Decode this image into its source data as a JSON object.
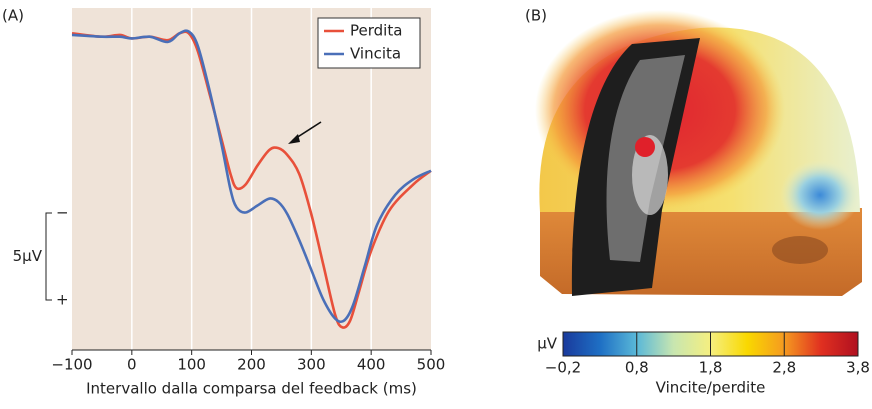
{
  "chart_data": [
    {
      "type": "line",
      "panel_label": "(A)",
      "xlabel": "Intervallo dalla comparsa del feedback (ms)",
      "xlim": [
        -100,
        500
      ],
      "xticks": [
        {
          "value": -100,
          "label": "−100"
        },
        0,
        100,
        200,
        300,
        400,
        500
      ],
      "ylim": [
        18.1,
        -1.55
      ],
      "grid": true,
      "legend": "upper right",
      "background": "#efe3d8",
      "scale_bar": {
        "value": 5,
        "label": "5μV",
        "minus": "−",
        "plus": "+"
      },
      "series": [
        {
          "name": "Perdita",
          "color": "#e8503a",
          "x": [
            -100,
            -50,
            -20,
            0,
            30,
            60,
            80,
            95,
            110,
            130,
            150,
            165,
            175,
            190,
            210,
            230,
            245,
            260,
            280,
            300,
            320,
            340,
            352,
            365,
            380,
            400,
            430,
            470,
            500
          ],
          "values": [
            -0.1,
            0.1,
            0,
            0.2,
            0.1,
            0.3,
            -0.1,
            -0.1,
            0.9,
            3.4,
            6.0,
            8.0,
            8.8,
            8.6,
            7.5,
            6.6,
            6.5,
            6.9,
            8.0,
            10.3,
            13.2,
            16.1,
            16.8,
            16.4,
            14.7,
            12.4,
            10.1,
            8.6,
            7.8
          ]
        },
        {
          "name": "Vincita",
          "color": "#4a6fb8",
          "x": [
            -100,
            -50,
            -20,
            0,
            30,
            60,
            80,
            95,
            110,
            130,
            150,
            165,
            175,
            190,
            210,
            230,
            245,
            260,
            280,
            300,
            320,
            340,
            355,
            370,
            390,
            410,
            440,
            470,
            500
          ],
          "values": [
            0,
            0.1,
            0.1,
            0.2,
            0.1,
            0.4,
            -0.1,
            -0.2,
            0.6,
            3.2,
            6.3,
            8.9,
            9.9,
            10.2,
            9.8,
            9.4,
            9.6,
            10.3,
            11.8,
            13.5,
            15.2,
            16.3,
            16.4,
            15.5,
            13.2,
            10.9,
            9.2,
            8.3,
            7.8
          ]
        }
      ]
    },
    {
      "type": "colorbar",
      "panel_label": "(B)",
      "unit": "μV",
      "xlabel": "Vincite/perdite",
      "xlim": [
        -0.2,
        3.8
      ],
      "xticks": [
        {
          "value": -0.2,
          "label": "−0,2"
        },
        {
          "value": 0.8,
          "label": "0,8"
        },
        {
          "value": 1.8,
          "label": "1,8"
        },
        {
          "value": 2.8,
          "label": "2,8"
        },
        {
          "value": 3.8,
          "label": "3,8"
        }
      ],
      "colors": [
        "#1a3a9c",
        "#1e6fc4",
        "#5ab8d8",
        "#c8e6b0",
        "#f5ef80",
        "#f9d800",
        "#f59a20",
        "#e03020",
        "#b01020"
      ]
    }
  ]
}
